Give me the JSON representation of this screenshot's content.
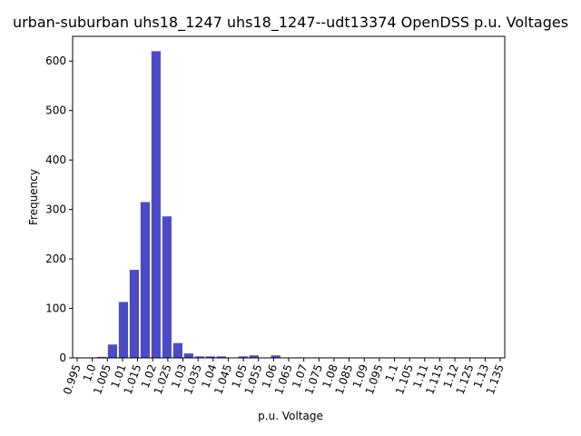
{
  "chart_data": {
    "type": "bar",
    "title": "urban-suburban uhs18_1247 uhs18_1247--udt13374 OpenDSS p.u. Voltages",
    "xlabel": "p.u. Voltage",
    "ylabel": "Frequency",
    "bar_color": "#4b4bc3",
    "xlim": [
      0.9935,
      1.1365
    ],
    "ylim": [
      0,
      650
    ],
    "grid": false,
    "legend": "none",
    "x_ticks": [
      0.995,
      1.0,
      1.005,
      1.01,
      1.015,
      1.02,
      1.025,
      1.03,
      1.035,
      1.04,
      1.045,
      1.05,
      1.055,
      1.06,
      1.065,
      1.07,
      1.075,
      1.08,
      1.085,
      1.09,
      1.095,
      1.1,
      1.105,
      1.11,
      1.115,
      1.12,
      1.125,
      1.13,
      1.135
    ],
    "x_tick_labels": [
      "0.995",
      "1.0",
      "1.005",
      "1.01",
      "1.015",
      "1.02",
      "1.025",
      "1.03",
      "1.035",
      "1.04",
      "1.045",
      "1.05",
      "1.055",
      "1.06",
      "1.065",
      "1.07",
      "1.075",
      "1.08",
      "1.085",
      "1.09",
      "1.095",
      "1.1",
      "1.105",
      "1.11",
      "1.115",
      "1.12",
      "1.125",
      "1.13",
      "1.135"
    ],
    "y_ticks": [
      0,
      100,
      200,
      300,
      400,
      500,
      600
    ],
    "y_tick_labels": [
      "0",
      "100",
      "200",
      "300",
      "400",
      "500",
      "600"
    ],
    "bin_width": 0.0036,
    "bins": [
      {
        "x": 0.9995,
        "value": 1
      },
      {
        "x": 1.0031,
        "value": 2
      },
      {
        "x": 1.0067,
        "value": 27
      },
      {
        "x": 1.0103,
        "value": 113
      },
      {
        "x": 1.0139,
        "value": 178
      },
      {
        "x": 1.0175,
        "value": 315
      },
      {
        "x": 1.0211,
        "value": 620
      },
      {
        "x": 1.0247,
        "value": 286
      },
      {
        "x": 1.0283,
        "value": 30
      },
      {
        "x": 1.0319,
        "value": 9
      },
      {
        "x": 1.0355,
        "value": 3
      },
      {
        "x": 1.0391,
        "value": 3
      },
      {
        "x": 1.0427,
        "value": 3
      },
      {
        "x": 1.0499,
        "value": 3
      },
      {
        "x": 1.0535,
        "value": 5
      },
      {
        "x": 1.0607,
        "value": 5
      },
      {
        "x": 1.0679,
        "value": 1
      }
    ]
  }
}
